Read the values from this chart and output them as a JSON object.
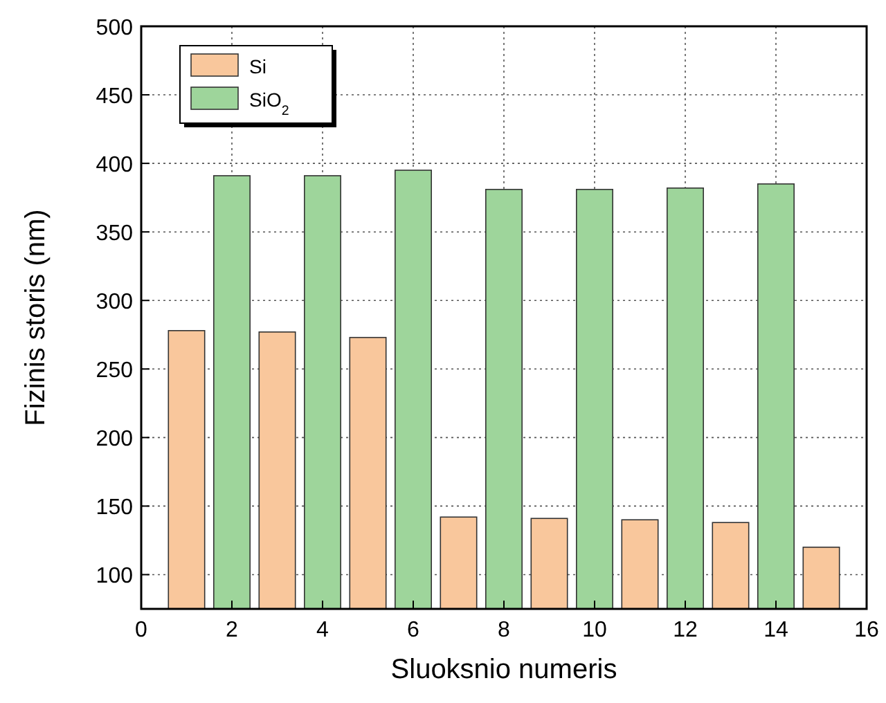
{
  "chart_data": {
    "type": "bar",
    "xlabel": "Sluoksnio numeris",
    "ylabel": "Fizinis storis (nm)",
    "series": [
      {
        "name": "Si",
        "color": "#f9c79c",
        "x": [
          1,
          3,
          5,
          7,
          9,
          11,
          13,
          15
        ],
        "values": [
          278,
          277,
          273,
          142,
          141,
          140,
          138,
          120
        ]
      },
      {
        "name": "SiO$_{2}$",
        "color": "#9ed59b",
        "x": [
          2,
          4,
          6,
          8,
          10,
          12,
          14
        ],
        "values": [
          391,
          391,
          395,
          381,
          381,
          382,
          385
        ]
      }
    ],
    "xlim": [
      0,
      16
    ],
    "xticks": [
      0,
      2,
      4,
      6,
      8,
      10,
      12,
      14,
      16
    ],
    "ylim": [
      75,
      500
    ],
    "yticks": [
      100,
      150,
      200,
      250,
      300,
      350,
      400,
      450,
      500
    ],
    "grid": true,
    "legend": "top left"
  }
}
